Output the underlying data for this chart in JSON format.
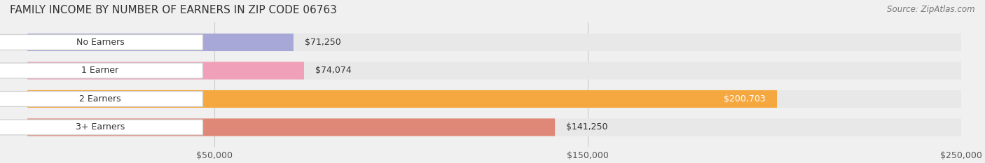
{
  "title": "FAMILY INCOME BY NUMBER OF EARNERS IN ZIP CODE 06763",
  "source": "Source: ZipAtlas.com",
  "categories": [
    "No Earners",
    "1 Earner",
    "2 Earners",
    "3+ Earners"
  ],
  "values": [
    71250,
    74074,
    200703,
    141250
  ],
  "bar_colors": [
    "#a8a8d8",
    "#f0a0b8",
    "#f5a840",
    "#e08878"
  ],
  "label_colors": [
    "#333333",
    "#333333",
    "#ffffff",
    "#333333"
  ],
  "background_color": "#f0f0f0",
  "bar_background_color": "#e8e8e8",
  "xlim": [
    0,
    250000
  ],
  "xticks": [
    50000,
    150000,
    250000
  ],
  "xtick_labels": [
    "$50,000",
    "$150,000",
    "$250,000"
  ],
  "title_fontsize": 11,
  "source_fontsize": 8.5,
  "label_fontsize": 9,
  "tick_fontsize": 9,
  "bar_height": 0.62,
  "figsize": [
    14.06,
    2.33
  ],
  "dpi": 100
}
